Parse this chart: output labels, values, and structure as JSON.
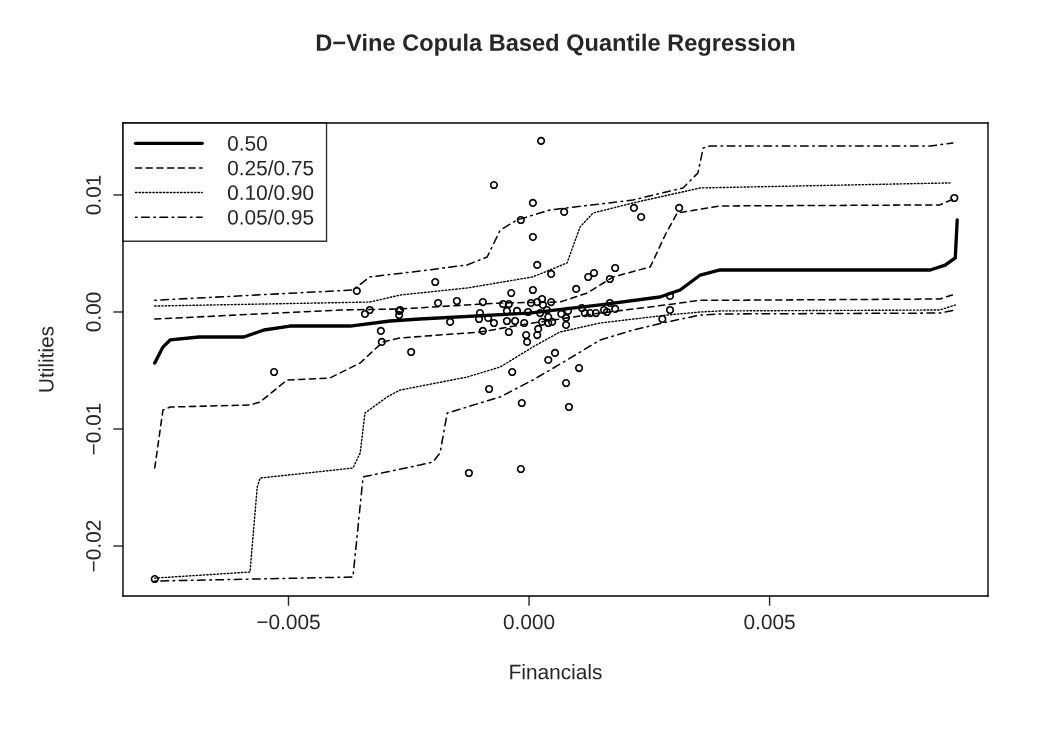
{
  "chart_data": {
    "type": "line",
    "title": "D−Vine Copula Based Quantile Regression",
    "xlabel": "Financials",
    "ylabel": "Utilities",
    "xlim": [
      -0.00844,
      0.00954
    ],
    "ylim": [
      -0.02427,
      0.01615
    ],
    "xticks": [
      {
        "value": -0.005,
        "label": "−0.005"
      },
      {
        "value": 0,
        "label": "0.000"
      },
      {
        "value": 0.005,
        "label": "0.005"
      }
    ],
    "yticks": [
      {
        "value": -0.02,
        "label": "−0.02"
      },
      {
        "value": -0.01,
        "label": "−0.01"
      },
      {
        "value": 0,
        "label": "0.00"
      },
      {
        "value": 0.01,
        "label": "0.01"
      }
    ],
    "grid": false,
    "legend": "top left",
    "series": [
      {
        "type": "scatter",
        "color": "#000000",
        "marker": "circle",
        "x": [
          0.00025,
          -0.00073,
          8e-05,
          0.00073,
          -0.00017,
          0.00218,
          0.00233,
          0.00312,
          8e-05,
          0.00017,
          0.00046,
          -0.00195,
          0.00123,
          0.00135,
          0.00179,
          0.00168,
          0.00098,
          -0.00037,
          8e-05,
          -0.00189,
          -0.0015,
          -0.00096,
          0.00293,
          0.00046,
          4e-05,
          0.00027,
          -0.00054,
          -0.00042,
          0.00168,
          0.00179,
          0.00293,
          0.0011,
          0.00116,
          0.00127,
          0.00139,
          0.00156,
          0.00162,
          0.00277,
          -0.00164,
          -0.00102,
          -0.00104,
          -0.00085,
          -0.00073,
          -0.00046,
          -0.00029,
          -0.0001,
          -0.00046,
          -0.00025,
          -2e-05,
          0.00023,
          0.0004,
          0.00067,
          0.00081,
          0.00077,
          0.00048,
          0.00027,
          0.00037,
          0.00017,
          0.00029,
          -0.00096,
          -0.00042,
          -6e-05,
          -4e-05,
          0.00017,
          0.00019,
          0.0004,
          0.00077,
          -0.00245,
          0.00054,
          0.0004,
          -0.00035,
          0.00104,
          -0.00083,
          0.00077,
          -0.00015,
          0.00083,
          -0.00125,
          -0.00017,
          -0.00358,
          -0.00341,
          -0.00331,
          -0.0027,
          -0.0027,
          -0.00308,
          -0.00306,
          -0.0053,
          -0.00778,
          0.00884,
          -0.00268
        ],
        "values": [
          0.01462,
          0.01085,
          0.00932,
          0.00855,
          0.00786,
          0.00889,
          0.00812,
          0.00889,
          0.00641,
          0.00402,
          0.00325,
          0.00256,
          0.00299,
          0.00333,
          0.00376,
          0.00282,
          0.00197,
          0.00162,
          0.00188,
          0.00077,
          0.00094,
          0.00085,
          0.00137,
          0.00085,
          0.00077,
          0.00111,
          0.00068,
          0.00068,
          0.00077,
          0.00026,
          0.00017,
          0.00034,
          -9e-05,
          -9e-05,
          -9e-05,
          0.00017,
          0,
          -0.0006,
          -0.00085,
          -9e-05,
          -0.0006,
          -0.00051,
          -0.00094,
          -0.00077,
          -0.00077,
          -0.00094,
          9e-05,
          9e-05,
          0,
          -9e-05,
          -0.00043,
          -0.00017,
          9e-05,
          -0.0005,
          -0.00085,
          -0.00085,
          0.00017,
          0.00085,
          0.0006,
          -0.00162,
          -0.00171,
          -0.00197,
          -0.00256,
          -0.00197,
          -0.00145,
          -0.00094,
          -0.00111,
          -0.00342,
          -0.0035,
          -0.0041,
          -0.00513,
          -0.00479,
          -0.00658,
          -0.00607,
          -0.00778,
          -0.00812,
          -0.01376,
          -0.01342,
          0.0018,
          -0.00017,
          0.00017,
          9e-05,
          -0.00026,
          -0.00162,
          -0.00256,
          -0.00513,
          -0.02282,
          0.00974,
          0.00017
        ]
      },
      {
        "name": "0.50",
        "color": "#000000",
        "line_style": "solid",
        "marker": "none",
        "x": [
          -0.00778,
          -0.00761,
          -0.00746,
          -0.00686,
          -0.00593,
          -0.00551,
          -0.00497,
          -0.00372,
          -0.00289,
          -0.00227,
          0,
          0.00148,
          0.00272,
          0.00314,
          0.00356,
          0.00397,
          0.00834,
          0.00865,
          0.00886,
          0.0089
        ],
        "values": [
          -0.00436,
          -0.003,
          -0.00239,
          -0.00214,
          -0.00214,
          -0.00154,
          -0.0012,
          -0.0012,
          -0.00077,
          -0.0006,
          -9e-05,
          0.0006,
          0.00128,
          0.00188,
          0.00316,
          0.00359,
          0.00359,
          0.004,
          0.00462,
          0.00786
        ]
      },
      {
        "name": "0.25/0.75",
        "color": "#000000",
        "line_style": "dashed",
        "marker": "none",
        "x": [
          -0.00778,
          -0.00393,
          -0.00268,
          -0.0006,
          0.00064,
          0.00121,
          0.00175,
          0.00252,
          0.00283,
          0.00308,
          0.00397,
          0.00854,
          0.00886
        ],
        "values": [
          -0.0006,
          0.00017,
          0.00026,
          0.00077,
          0.00085,
          0.00162,
          0.003,
          0.00385,
          0.00658,
          0.00846,
          0.00906,
          0.00915,
          0.00974
        ]
      },
      {
        "color": "#000000",
        "line_style": "dashed",
        "marker": "none",
        "x": [
          -0.00778,
          -0.00761,
          -0.00746,
          -0.0058,
          -0.00559,
          -0.00503,
          -0.00414,
          -0.00351,
          -0.00304,
          -0.00268,
          -0.00102,
          8e-05,
          0.00148,
          0.00252,
          0.00356,
          0.00397,
          0.00854,
          0.00886
        ],
        "values": [
          -0.01333,
          -0.00838,
          -0.00812,
          -0.00795,
          -0.00769,
          -0.00581,
          -0.00564,
          -0.00436,
          -0.00256,
          -0.00222,
          -0.00171,
          -0.00094,
          -9e-05,
          0.00043,
          0.001,
          0.001,
          0.00111,
          0.00154
        ]
      },
      {
        "name": "0.10/0.90",
        "color": "#000000",
        "line_style": "dotted",
        "marker": "none",
        "x": [
          -0.00778,
          -0.00331,
          -0.00268,
          -0.00129,
          8e-05,
          0.00079,
          0.00106,
          0.00133,
          0.00216,
          0.00356,
          0.00875
        ],
        "values": [
          0.00051,
          0.00085,
          0.00145,
          0.00205,
          0.003,
          0.00419,
          0.00726,
          0.00846,
          0.00932,
          0.0106,
          0.01103
        ]
      },
      {
        "color": "#000000",
        "line_style": "dotted",
        "marker": "none",
        "x": [
          -0.00778,
          -0.0058,
          -0.00565,
          -0.00559,
          -0.00366,
          -0.00351,
          -0.00341,
          -0.00295,
          -0.00268,
          -0.00129,
          -0.0006,
          8e-05,
          0.00064,
          0.00148,
          0.00287,
          0.00356,
          0.00397,
          0.00854,
          0.00886
        ],
        "values": [
          -0.02274,
          -0.02222,
          -0.01496,
          -0.01419,
          -0.01333,
          -0.01205,
          -0.00863,
          -0.00726,
          -0.00667,
          -0.00556,
          -0.0047,
          -0.00299,
          -0.00171,
          -0.00094,
          -0.00026,
          0,
          9e-05,
          0.00017,
          0.0006
        ]
      },
      {
        "name": "0.05/0.95",
        "color": "#000000",
        "line_style": "dashdot",
        "marker": "none",
        "x": [
          -0.00778,
          -0.00366,
          -0.00331,
          -0.00227,
          -0.00129,
          -0.00087,
          -0.0006,
          -0.00025,
          0.00044,
          0.00216,
          0.0032,
          0.00351,
          0.00362,
          0.00376,
          0.00834,
          0.00881
        ],
        "values": [
          0.001,
          0.00188,
          0.003,
          0.0035,
          0.00402,
          0.0047,
          0.007,
          0.00786,
          0.00872,
          0.00957,
          0.0106,
          0.01188,
          0.01402,
          0.01419,
          0.01419,
          0.01444
        ]
      },
      {
        "color": "#000000",
        "line_style": "dashdot",
        "marker": "none",
        "x": [
          -0.00778,
          -0.00366,
          -0.00345,
          -0.00227,
          -0.002,
          -0.00185,
          -0.0017,
          -0.00129,
          -0.0006,
          8e-05,
          0.00079,
          0.00148,
          0.00216,
          0.00287,
          0.00356,
          0.00397,
          0.00854,
          0.00886
        ],
        "values": [
          -0.02299,
          -0.02265,
          -0.0141,
          -0.01308,
          -0.01282,
          -0.01205,
          -0.00863,
          -0.00812,
          -0.00726,
          -0.00581,
          -0.0041,
          -0.00239,
          -0.00154,
          -0.00085,
          -0.00026,
          -0.00017,
          -9e-05,
          0.00017
        ]
      }
    ]
  }
}
